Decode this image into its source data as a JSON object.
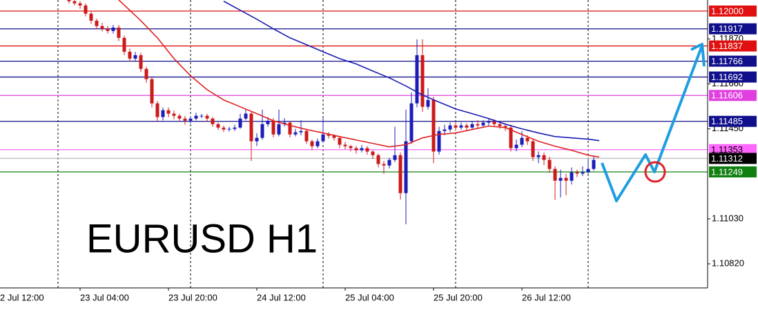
{
  "chart_data": {
    "type": "candlestick",
    "title": "EURUSD H1",
    "up_color": "#1c1cb8",
    "down_color": "#cc1a1a",
    "x": [
      14,
      15,
      16,
      17,
      18,
      19,
      20,
      21,
      22,
      23,
      24,
      25,
      26,
      27,
      28,
      29,
      30,
      31,
      32,
      33,
      34,
      35,
      36,
      37,
      38,
      39,
      40,
      41,
      42,
      43,
      44,
      45,
      46,
      47,
      48,
      49,
      50,
      51,
      52,
      53,
      54,
      55,
      56,
      57,
      58,
      59,
      60,
      61,
      62,
      63,
      64,
      65,
      66,
      67,
      68,
      69,
      70,
      71,
      72,
      73,
      74,
      75,
      76,
      77,
      78,
      79,
      80,
      81,
      82,
      83,
      84,
      85,
      86,
      87,
      88,
      89,
      90,
      91,
      92,
      93,
      94,
      95,
      96,
      97,
      98,
      99,
      100,
      101,
      102,
      103,
      104,
      105,
      106,
      107,
      108,
      109
    ],
    "open": [
      1.1206,
      1.12046,
      1.12036,
      1.12026,
      1.11988,
      1.11955,
      1.1193,
      1.11917,
      1.11907,
      1.11923,
      1.11875,
      1.1181,
      1.11778,
      1.11794,
      1.1173,
      1.11682,
      1.11569,
      1.11505,
      1.11537,
      1.11521,
      1.11511,
      1.11498,
      1.11488,
      1.11498,
      1.11511,
      1.11511,
      1.11498,
      1.11472,
      1.11456,
      1.11447,
      1.1145,
      1.11456,
      1.11498,
      1.11521,
      1.11392,
      1.11408,
      1.11472,
      1.11488,
      1.11424,
      1.11472,
      1.11479,
      1.11424,
      1.11434,
      1.1144,
      1.11392,
      1.11369,
      1.11392,
      1.11424,
      1.11418,
      1.11408,
      1.11376,
      1.11369,
      1.1136,
      1.1135,
      1.1136,
      1.11344,
      1.11327,
      1.11286,
      1.11279,
      1.11305,
      1.11327,
      1.1115,
      1.11392,
      1.11569,
      1.11794,
      1.11553,
      1.11585,
      1.11344,
      1.1144,
      1.11447,
      1.11466,
      1.11456,
      1.11466,
      1.11456,
      1.11472,
      1.11466,
      1.11479,
      1.11485,
      1.11472,
      1.11463,
      1.11456,
      1.1136,
      1.11376,
      1.11408,
      1.11392,
      1.11318,
      1.11327,
      1.11305,
      1.11263,
      1.11208,
      1.11221,
      1.11208,
      1.11247,
      1.11241,
      1.11247,
      1.11263
    ],
    "high": [
      1.1207,
      1.12056,
      1.12046,
      1.12036,
      1.11998,
      1.11965,
      1.11945,
      1.1193,
      1.11935,
      1.11935,
      1.11885,
      1.11825,
      1.1181,
      1.11805,
      1.1174,
      1.1169,
      1.1158,
      1.1155,
      1.1155,
      1.11535,
      1.1152,
      1.1151,
      1.1151,
      1.11525,
      1.1152,
      1.1152,
      1.11505,
      1.1148,
      1.11465,
      1.1146,
      1.1147,
      1.1152,
      1.1154,
      1.1153,
      1.1143,
      1.1154,
      1.11505,
      1.115,
      1.1154,
      1.115,
      1.11485,
      1.1145,
      1.1149,
      1.1145,
      1.114,
      1.11405,
      1.11505,
      1.11435,
      1.11425,
      1.11415,
      1.1139,
      1.11375,
      1.1137,
      1.11375,
      1.1137,
      1.1135,
      1.11335,
      1.113,
      1.11315,
      1.1146,
      1.1134,
      1.1154,
      1.1162,
      1.11868,
      1.11868,
      1.1164,
      1.116,
      1.1146,
      1.1147,
      1.1148,
      1.1148,
      1.1148,
      1.11475,
      1.11485,
      1.1149,
      1.1149,
      1.115,
      1.11495,
      1.11485,
      1.11475,
      1.1147,
      1.114,
      1.1144,
      1.1142,
      1.11405,
      1.11345,
      1.1134,
      1.1132,
      1.11275,
      1.1126,
      1.1124,
      1.1127,
      1.1126,
      1.11275,
      1.1131,
      1.1132
    ],
    "low": [
      1.12036,
      1.12026,
      1.1201,
      1.11975,
      1.1194,
      1.11915,
      1.11905,
      1.11895,
      1.11895,
      1.1186,
      1.11795,
      1.11765,
      1.11765,
      1.11715,
      1.11665,
      1.1155,
      1.11485,
      1.1149,
      1.11505,
      1.11495,
      1.11485,
      1.1147,
      1.11475,
      1.1149,
      1.115,
      1.11485,
      1.1146,
      1.11445,
      1.11435,
      1.11437,
      1.1144,
      1.1145,
      1.1149,
      1.113,
      1.1137,
      1.114,
      1.1146,
      1.1141,
      1.11415,
      1.1146,
      1.1141,
      1.11415,
      1.1142,
      1.1138,
      1.1135,
      1.1136,
      1.11385,
      1.11405,
      1.11395,
      1.1136,
      1.11355,
      1.11345,
      1.11335,
      1.1134,
      1.1133,
      1.1131,
      1.1127,
      1.1124,
      1.11265,
      1.11295,
      1.1112,
      1.11005,
      1.1138,
      1.1155,
      1.1153,
      1.1154,
      1.1129,
      1.1133,
      1.1142,
      1.11435,
      1.1144,
      1.11445,
      1.11445,
      1.11445,
      1.11455,
      1.11455,
      1.11465,
      1.1146,
      1.1145,
      1.1144,
      1.11345,
      1.11345,
      1.11365,
      1.11375,
      1.113,
      1.1129,
      1.1128,
      1.11245,
      1.11118,
      1.1113,
      1.1114,
      1.1119,
      1.11225,
      1.1123,
      1.1124,
      1.11255
    ],
    "close": [
      1.12046,
      1.12036,
      1.12026,
      1.11988,
      1.11955,
      1.1193,
      1.11917,
      1.11907,
      1.11923,
      1.11875,
      1.1181,
      1.11778,
      1.11794,
      1.1173,
      1.11682,
      1.11569,
      1.11505,
      1.11537,
      1.11521,
      1.11511,
      1.11498,
      1.11488,
      1.11498,
      1.11511,
      1.11511,
      1.11498,
      1.11472,
      1.11456,
      1.11447,
      1.1145,
      1.11456,
      1.11498,
      1.11521,
      1.11392,
      1.11408,
      1.11472,
      1.11488,
      1.11424,
      1.11472,
      1.11479,
      1.11424,
      1.11434,
      1.1144,
      1.11392,
      1.11369,
      1.11392,
      1.11424,
      1.11418,
      1.11408,
      1.11376,
      1.11369,
      1.1136,
      1.1135,
      1.1136,
      1.11344,
      1.11327,
      1.11286,
      1.11279,
      1.11305,
      1.11327,
      1.1115,
      1.11392,
      1.11569,
      1.11794,
      1.11553,
      1.11585,
      1.11344,
      1.1144,
      1.11447,
      1.11466,
      1.11456,
      1.11466,
      1.11456,
      1.11472,
      1.11466,
      1.11479,
      1.11485,
      1.11472,
      1.11463,
      1.11456,
      1.1136,
      1.11376,
      1.11408,
      1.11392,
      1.11318,
      1.11327,
      1.11305,
      1.11263,
      1.11208,
      1.11221,
      1.11208,
      1.11247,
      1.11241,
      1.11247,
      1.11263,
      1.11305
    ],
    "series": [
      {
        "color": "#e02020",
        "x": [
          23,
          27,
          30,
          33,
          36,
          39,
          42,
          45,
          48,
          51,
          54,
          57,
          60,
          63,
          66,
          69,
          72,
          75,
          78,
          81,
          84,
          87,
          90,
          93,
          96,
          99,
          102,
          105,
          108,
          110
        ],
        "values": [
          1.12052,
          1.11955,
          1.11875,
          1.11778,
          1.11698,
          1.11633,
          1.11585,
          1.11553,
          1.11521,
          1.11488,
          1.11466,
          1.11447,
          1.11431,
          1.11414,
          1.11398,
          1.11382,
          1.11366,
          1.11376,
          1.11408,
          1.11424,
          1.11431,
          1.11447,
          1.11463,
          1.11456,
          1.11424,
          1.11392,
          1.11369,
          1.1135,
          1.11327,
          1.11318
        ]
      },
      {
        "color": "#1a1ab4",
        "x": [
          42,
          45,
          48,
          51,
          54,
          57,
          60,
          63,
          66,
          69,
          72,
          75,
          78,
          81,
          84,
          87,
          90,
          93,
          96,
          99,
          102,
          105,
          108,
          110
        ],
        "values": [
          1.12046,
          1.12004,
          1.11962,
          1.11917,
          1.11875,
          1.11843,
          1.1181,
          1.11778,
          1.11753,
          1.1172,
          1.11688,
          1.1165,
          1.11608,
          1.11575,
          1.11543,
          1.11521,
          1.11498,
          1.11472,
          1.1145,
          1.11431,
          1.11414,
          1.11408,
          1.11402,
          1.11395
        ]
      }
    ],
    "hlines": [
      {
        "value": 1.12,
        "label": "1.12000",
        "color": "#e01010",
        "text_color": "#ffffff"
      },
      {
        "value": 1.11917,
        "label": "1.11917",
        "color": "#10108c",
        "text_color": "#ffffff"
      },
      {
        "value": 1.11837,
        "label": "1.11837",
        "color": "#e01010",
        "text_color": "#ffffff"
      },
      {
        "value": 1.11766,
        "label": "1.11766",
        "color": "#10108c",
        "text_color": "#ffffff"
      },
      {
        "value": 1.11692,
        "label": "1.11692",
        "color": "#10108c",
        "text_color": "#ffffff"
      },
      {
        "value": 1.11606,
        "label": "1.11606",
        "color": "#e040e0",
        "text_color": "#ffffff"
      },
      {
        "value": 1.11485,
        "label": "1.11485",
        "color": "#10108c",
        "text_color": "#ffffff"
      },
      {
        "value": 1.11353,
        "label": "1.11353",
        "color": "#ff66ff",
        "text_color": "#000000"
      },
      {
        "value": 1.11312,
        "label": "1.11312",
        "color": "#c0c0c0",
        "label_bg": "#000000",
        "text_color": "#ffffff"
      },
      {
        "value": 1.11249,
        "label": "1.11249",
        "color": "#108010",
        "text_color": "#ffffff"
      }
    ],
    "separators": [
      12,
      36,
      60,
      84,
      108
    ],
    "xlim": [
      1.5,
      129.625
    ],
    "ylim": [
      1.107075,
      1.120516
    ],
    "xticks": [
      {
        "value": 0,
        "label": "2 Jul 12:00"
      },
      {
        "value": 16,
        "label": "23 Jul 04:00"
      },
      {
        "value": 32,
        "label": "23 Jul 20:00"
      },
      {
        "value": 48,
        "label": "24 Jul 12:00"
      },
      {
        "value": 64,
        "label": "25 Jul 04:00"
      },
      {
        "value": 80,
        "label": "25 Jul 20:00"
      },
      {
        "value": 96,
        "label": "26 Jul 12:00"
      }
    ],
    "yticks": [
      {
        "value": 1.1082,
        "label": "1.10820"
      },
      {
        "value": 1.1103,
        "label": "1.11030"
      },
      {
        "value": 1.1145,
        "label": "1.11450"
      },
      {
        "value": 1.1166,
        "label": "1.11660"
      },
      {
        "value": 1.1187,
        "label": "1.11870"
      }
    ]
  }
}
